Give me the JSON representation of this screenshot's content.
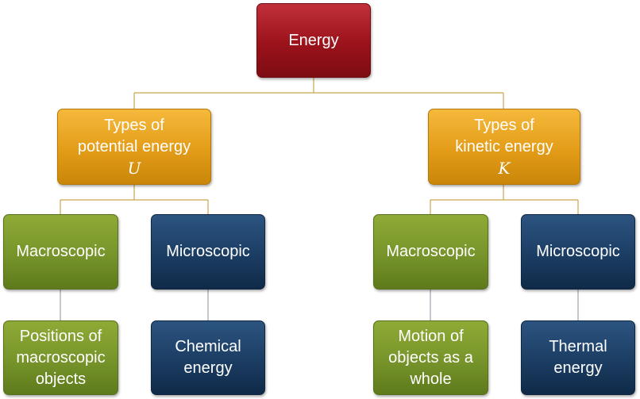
{
  "root": {
    "label": "Energy"
  },
  "branches": [
    {
      "title_lines": [
        "Types of",
        "potential energy"
      ],
      "symbol": "U",
      "children": [
        {
          "label": "Macroscopic",
          "example_lines": [
            "Positions of",
            "macroscopic",
            "objects"
          ]
        },
        {
          "label": "Microscopic",
          "example_lines": [
            "Chemical",
            "energy"
          ]
        }
      ]
    },
    {
      "title_lines": [
        "Types of",
        "kinetic energy"
      ],
      "symbol": "K",
      "children": [
        {
          "label": "Macroscopic",
          "example_lines": [
            "Motion of",
            "objects as a",
            "whole"
          ]
        },
        {
          "label": "Microscopic",
          "example_lines": [
            "Thermal",
            "energy"
          ]
        }
      ]
    }
  ],
  "colors": {
    "root": "#9b121b",
    "branch": "#e39c18",
    "macroscopic": "#76942a",
    "microscopic": "#1b3d63",
    "connector": "#c9a64a"
  }
}
